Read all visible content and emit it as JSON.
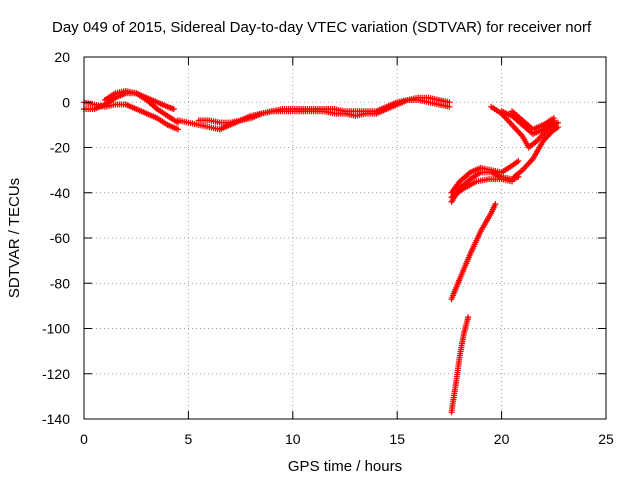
{
  "chart_data": {
    "type": "scatter",
    "title": "Day 049 of 2015, Sidereal Day-to-day VTEC variation (SDTVAR) for receiver norf",
    "xlabel": "GPS time / hours",
    "ylabel": "SDTVAR / TECUs",
    "xlim": [
      0,
      25
    ],
    "ylim": [
      -140,
      20
    ],
    "xticks": [
      0,
      5,
      10,
      15,
      20,
      25
    ],
    "yticks": [
      -140,
      -120,
      -100,
      -80,
      -60,
      -40,
      -20,
      0,
      20
    ],
    "grid": true,
    "marker": "+",
    "color": "#ff0000",
    "series": [
      {
        "segments": [
          [
            [
              0.0,
              0
            ],
            [
              0.5,
              -1
            ],
            [
              1.0,
              -2
            ],
            [
              1.5,
              -1
            ],
            [
              2.0,
              -1
            ],
            [
              2.5,
              -3
            ],
            [
              3.0,
              -5
            ],
            [
              3.5,
              -7
            ],
            [
              4.0,
              -10
            ],
            [
              4.5,
              -12
            ]
          ],
          [
            [
              0.0,
              -3
            ],
            [
              0.5,
              -3
            ],
            [
              1.0,
              -1
            ],
            [
              1.5,
              2
            ],
            [
              2.0,
              4
            ],
            [
              2.5,
              4
            ],
            [
              3.0,
              1
            ],
            [
              3.5,
              -3
            ],
            [
              4.0,
              -6
            ],
            [
              4.5,
              -9
            ]
          ],
          [
            [
              1.0,
              1
            ],
            [
              1.5,
              4
            ],
            [
              2.0,
              5
            ],
            [
              2.5,
              4
            ],
            [
              3.0,
              2
            ],
            [
              3.5,
              0
            ],
            [
              4.0,
              -2
            ],
            [
              4.3,
              -3
            ]
          ],
          [
            [
              4.5,
              -8
            ],
            [
              5.0,
              -9
            ],
            [
              5.5,
              -10
            ],
            [
              6.0,
              -11
            ],
            [
              6.5,
              -12
            ],
            [
              7.0,
              -10
            ],
            [
              7.5,
              -8
            ],
            [
              8.0,
              -7
            ],
            [
              8.5,
              -5
            ],
            [
              9.0,
              -4
            ],
            [
              9.5,
              -4
            ],
            [
              10.0,
              -4
            ],
            [
              10.5,
              -4
            ],
            [
              11.0,
              -4
            ],
            [
              11.5,
              -4
            ],
            [
              12.0,
              -5
            ],
            [
              12.5,
              -5
            ],
            [
              13.0,
              -6
            ],
            [
              13.5,
              -5
            ],
            [
              14.0,
              -5
            ],
            [
              14.5,
              -3
            ],
            [
              15.0,
              -1
            ],
            [
              15.5,
              1
            ],
            [
              16.0,
              1
            ],
            [
              16.5,
              0
            ],
            [
              17.0,
              -1
            ],
            [
              17.5,
              -2
            ]
          ],
          [
            [
              5.5,
              -8
            ],
            [
              6.0,
              -8
            ],
            [
              6.5,
              -9
            ],
            [
              7.0,
              -9
            ],
            [
              7.5,
              -8
            ],
            [
              8.0,
              -6
            ],
            [
              8.5,
              -5
            ],
            [
              9.0,
              -4
            ],
            [
              9.5,
              -3
            ],
            [
              10.0,
              -3
            ],
            [
              10.5,
              -3
            ],
            [
              11.0,
              -3
            ],
            [
              11.5,
              -3
            ],
            [
              12.0,
              -3
            ],
            [
              12.5,
              -4
            ],
            [
              13.0,
              -4
            ],
            [
              13.5,
              -4
            ],
            [
              14.0,
              -4
            ],
            [
              14.5,
              -2
            ],
            [
              15.0,
              0
            ],
            [
              15.5,
              1
            ],
            [
              16.0,
              2
            ],
            [
              16.5,
              2
            ],
            [
              17.0,
              1
            ],
            [
              17.5,
              0
            ]
          ],
          [
            [
              17.6,
              -87
            ],
            [
              18.0,
              -78
            ],
            [
              18.5,
              -67
            ],
            [
              19.0,
              -57
            ],
            [
              19.5,
              -49
            ],
            [
              19.7,
              -45
            ]
          ],
          [
            [
              17.6,
              -137
            ],
            [
              17.8,
              -125
            ],
            [
              18.0,
              -112
            ],
            [
              18.2,
              -102
            ],
            [
              18.4,
              -95
            ]
          ],
          [
            [
              17.6,
              -44
            ],
            [
              18.0,
              -38
            ],
            [
              18.5,
              -34
            ],
            [
              19.0,
              -31
            ],
            [
              19.5,
              -31
            ],
            [
              20.0,
              -33
            ],
            [
              20.5,
              -34
            ],
            [
              20.8,
              -33
            ]
          ],
          [
            [
              17.6,
              -40
            ],
            [
              18.0,
              -35
            ],
            [
              18.5,
              -31
            ],
            [
              19.0,
              -29
            ],
            [
              19.5,
              -30
            ],
            [
              20.0,
              -31
            ],
            [
              20.5,
              -28
            ],
            [
              20.8,
              -26
            ]
          ],
          [
            [
              17.6,
              -42
            ],
            [
              18.2,
              -38
            ],
            [
              18.8,
              -35
            ],
            [
              19.4,
              -34
            ],
            [
              20.0,
              -34
            ],
            [
              20.5,
              -35
            ]
          ],
          [
            [
              19.5,
              -2
            ],
            [
              20.0,
              -5
            ],
            [
              20.5,
              -10
            ],
            [
              21.0,
              -15
            ],
            [
              21.3,
              -20
            ],
            [
              21.7,
              -17
            ],
            [
              22.2,
              -12
            ],
            [
              22.7,
              -9
            ]
          ],
          [
            [
              20.0,
              -4
            ],
            [
              20.5,
              -6
            ],
            [
              21.0,
              -10
            ],
            [
              21.5,
              -14
            ],
            [
              22.0,
              -12
            ],
            [
              22.5,
              -8
            ]
          ],
          [
            [
              20.5,
              -4
            ],
            [
              21.0,
              -8
            ],
            [
              21.5,
              -12
            ],
            [
              22.0,
              -10
            ],
            [
              22.5,
              -7
            ]
          ],
          [
            [
              20.6,
              -33
            ],
            [
              21.0,
              -30
            ],
            [
              21.5,
              -25
            ],
            [
              22.0,
              -17
            ],
            [
              22.4,
              -13
            ],
            [
              22.7,
              -11
            ]
          ]
        ]
      }
    ]
  }
}
